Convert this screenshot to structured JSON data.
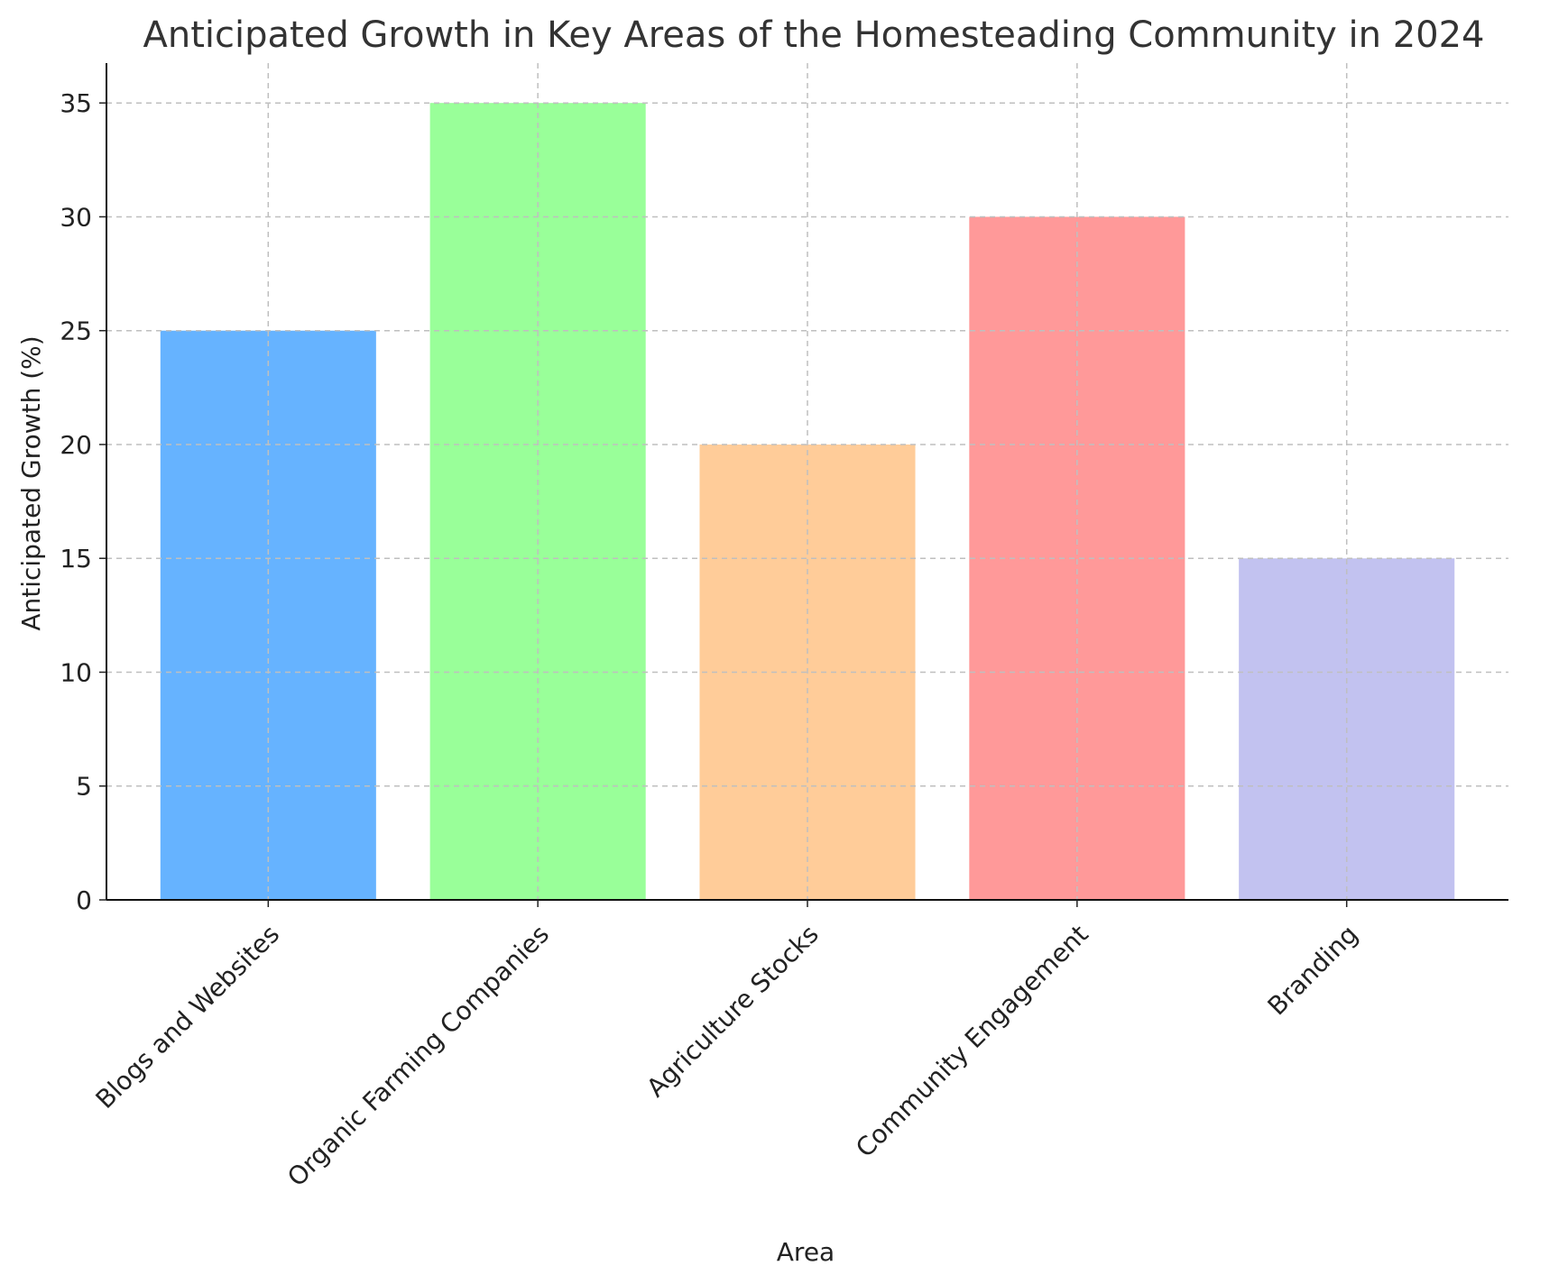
{
  "chart_data": {
    "type": "bar",
    "title": "Anticipated Growth in Key Areas of the Homesteading Community in 2024",
    "xlabel": "Area",
    "ylabel": "Anticipated Growth (%)",
    "categories": [
      "Blogs and Websites",
      "Organic Farming Companies",
      "Agriculture Stocks",
      "Community Engagement",
      "Branding"
    ],
    "values": [
      25,
      35,
      20,
      30,
      15
    ],
    "colors": [
      "#66b3ff",
      "#99ff99",
      "#ffcc99",
      "#ff9999",
      "#c2c2f0"
    ],
    "ylim": [
      0,
      36.75
    ],
    "yticks": [
      0,
      5,
      10,
      15,
      20,
      25,
      30,
      35
    ],
    "grid": true,
    "legend": "none"
  }
}
